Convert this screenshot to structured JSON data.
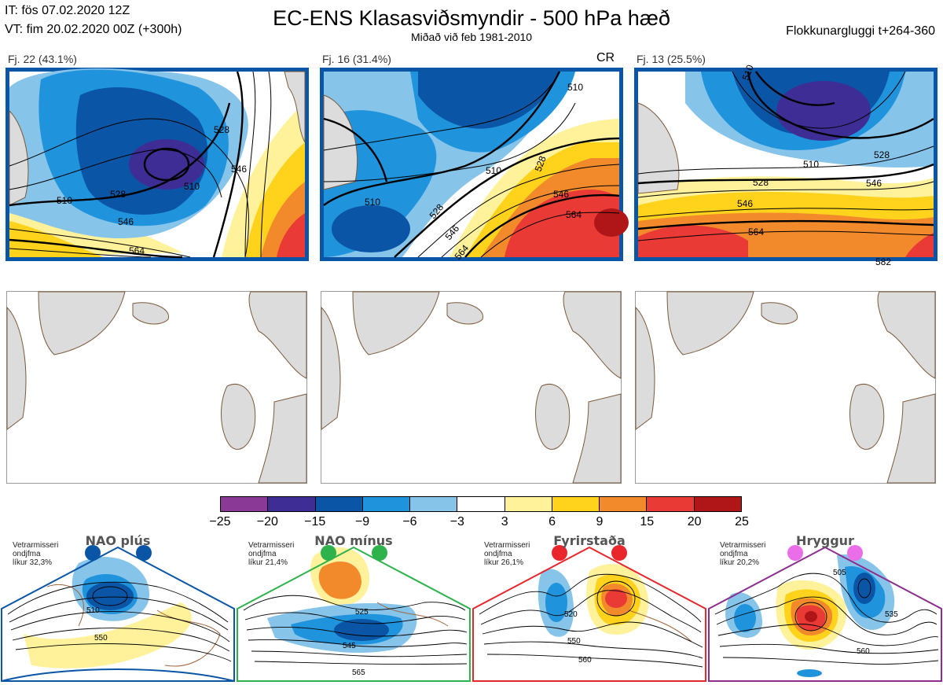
{
  "header": {
    "it": "IT: fös 07.02.2020 12Z",
    "vt": "VT: fim 20.02.2020 00Z  (+300h)",
    "title": "EC-ENS Klasasviðsmyndir - 500 hPa hæð",
    "subtitle": "Miðað við feb 1981-2010",
    "window": "Flokkunargluggi t+264-360"
  },
  "panels": [
    {
      "label": "Fj. 22 (43.1%)",
      "tag": "",
      "contours": [
        "510",
        "528",
        "546",
        "564",
        "510",
        "528",
        "546"
      ]
    },
    {
      "label": "Fj. 16 (31.4%)",
      "tag": "CR",
      "contours": [
        "510",
        "528",
        "546",
        "564",
        "510",
        "528",
        "546",
        "564",
        "510"
      ]
    },
    {
      "label": "Fj. 13 (25.5%)",
      "tag": "",
      "contours": [
        "510",
        "528",
        "546",
        "564",
        "510",
        "528",
        "546",
        "582"
      ]
    }
  ],
  "colorscale": {
    "colors": [
      "#8a3a96",
      "#3e2d94",
      "#0a55a6",
      "#1f93dc",
      "#86c4ea",
      "#ffffff",
      "#fff29a",
      "#ffd21c",
      "#f28a2c",
      "#e93a36",
      "#b01618"
    ],
    "ticks": [
      "−25",
      "−20",
      "−15",
      "−9",
      "−6",
      "−3",
      "3",
      "6",
      "9",
      "15",
      "20",
      "25"
    ]
  },
  "regimes": [
    {
      "title": "NAO plús",
      "note": [
        "Vetrarmisseri",
        "ondjfma",
        "líkur 32,3%"
      ],
      "dot_color": "#0a55a6",
      "frame_color": "#0a55a6",
      "contours": [
        "510",
        "550"
      ]
    },
    {
      "title": "NAO mínus",
      "note": [
        "Vetrarmisseri",
        "ondjfma",
        "líkur 21,4%"
      ],
      "dot_color": "#2db24c",
      "frame_color": "#2db24c",
      "contours": [
        "525",
        "545",
        "565"
      ]
    },
    {
      "title": "Fyrirstaða",
      "note": [
        "Vetrarmisseri",
        "ondjfma",
        "líkur 26,1%"
      ],
      "dot_color": "#e8262c",
      "frame_color": "#e8262c",
      "contours": [
        "520",
        "550",
        "560"
      ]
    },
    {
      "title": "Hryggur",
      "note": [
        "Vetrarmisseri",
        "ondjfma",
        "líkur 20,2%"
      ],
      "dot_color": "#ea6ee8",
      "frame_color": "#8b2e8e",
      "contours": [
        "505",
        "535",
        "560"
      ]
    }
  ]
}
